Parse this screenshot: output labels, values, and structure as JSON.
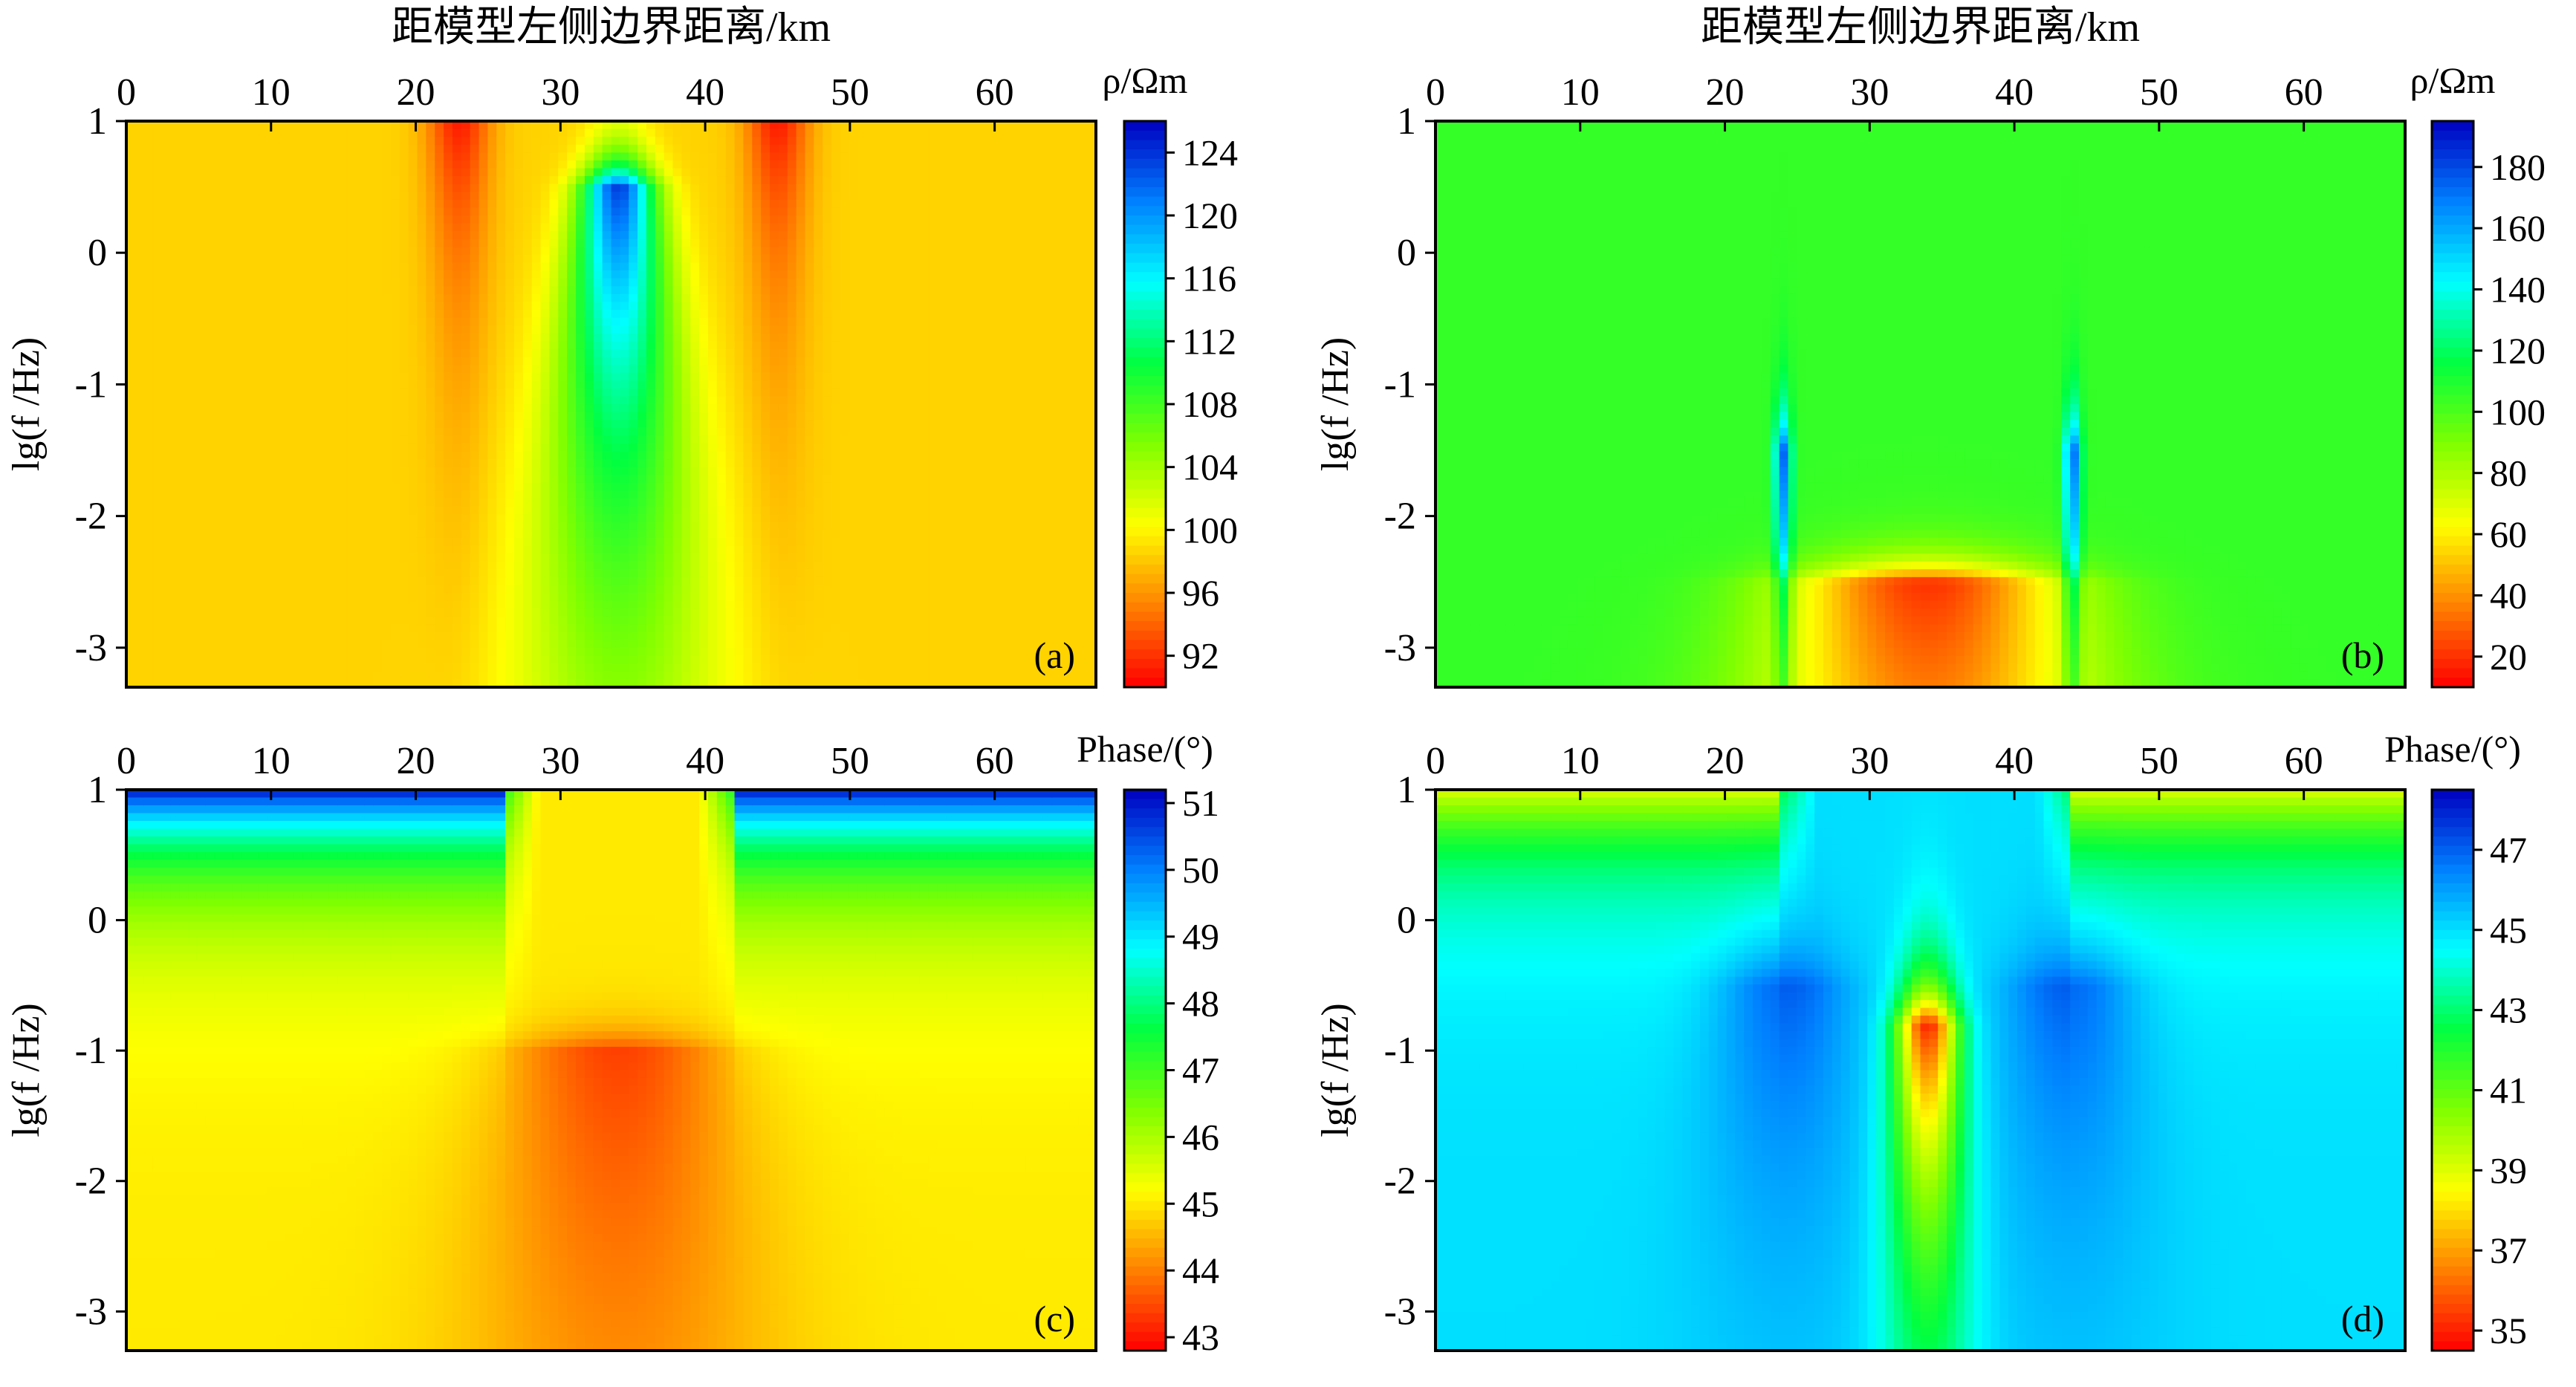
{
  "figure": {
    "panels": [
      {
        "id": "a",
        "label": "(a)",
        "top_title": "距模型左侧边界距离/km",
        "ylabel": "lg(f /Hz)",
        "colorbar_label": "ρ/Ωm",
        "colorbar_ticks": [
          "124",
          "120",
          "116",
          "112",
          "108",
          "104",
          "100",
          "96",
          "92"
        ],
        "colorbar_range": [
          90,
          126
        ],
        "field": {
          "background": 98.5,
          "anomalies": [
            {
              "x": 23,
              "width": 2.2,
              "amp": -7.5,
              "lgf_top": 1,
              "decay": 0.7,
              "spread": 0.0
            },
            {
              "x": 45,
              "width": 2.2,
              "amp": -7.5,
              "lgf_top": 1,
              "decay": 0.7,
              "spread": 0.0
            },
            {
              "x": 34,
              "width": 2.0,
              "amp": 25,
              "lgf_top": 0.5,
              "decay": 0.35,
              "spread": 1.2
            }
          ]
        }
      },
      {
        "id": "b",
        "label": "(b)",
        "top_title": "距模型左侧边界距离/km",
        "ylabel": "lg(f /Hz)",
        "colorbar_label": "ρ/Ωm",
        "colorbar_ticks": [
          "180",
          "160",
          "140",
          "120",
          "100",
          "80",
          "60",
          "40",
          "20"
        ],
        "colorbar_range": [
          10,
          195
        ],
        "field": {
          "background": 105,
          "anomalies": [
            {
              "x": 24,
              "width": 0.6,
              "amp": 70,
              "lgf_top": -1.5,
              "decay": 0.5,
              "spread": 0.0
            },
            {
              "x": 44,
              "width": 0.6,
              "amp": 70,
              "lgf_top": -1.5,
              "decay": 0.5,
              "spread": 0.0
            },
            {
              "x": 34,
              "width": 1.8,
              "amp": -85,
              "lgf_top": -2.5,
              "decay": 0.25,
              "spread": 2.2
            }
          ]
        }
      },
      {
        "id": "c",
        "label": "(c)",
        "top_title": "",
        "ylabel": "lg(f /Hz)",
        "colorbar_label": "Phase/(°)",
        "colorbar_ticks": [
          "51",
          "50",
          "49",
          "48",
          "47",
          "46",
          "45",
          "44",
          "43"
        ],
        "colorbar_range": [
          42.8,
          51.2
        ],
        "field": {
          "background": 45.0,
          "surface": {
            "amp": 6.0,
            "depth": 0.6,
            "gap": [
              26,
              42
            ]
          },
          "anomalies": [
            {
              "x": 34,
              "width": 4.5,
              "amp": -1.6,
              "lgf_top": -1.0,
              "decay": 0.25,
              "spread": 1.5
            }
          ]
        }
      },
      {
        "id": "d",
        "label": "(d)",
        "top_title": "",
        "ylabel": "lg(f /Hz)",
        "colorbar_label": "Phase/(°)",
        "colorbar_ticks": [
          "47",
          "45",
          "43",
          "41",
          "39",
          "37",
          "35"
        ],
        "colorbar_range": [
          34.5,
          48.5
        ],
        "field": {
          "background": 45.0,
          "surface": {
            "amp": -6.0,
            "depth": 0.55,
            "gap": [
              24,
              44
            ]
          },
          "anomalies": [
            {
              "x": 24,
              "width": 3.0,
              "amp": 2.2,
              "lgf_top": -0.5,
              "decay": 0.55,
              "spread": 1.0
            },
            {
              "x": 44,
              "width": 3.0,
              "amp": 2.2,
              "lgf_top": -0.5,
              "decay": 0.55,
              "spread": 1.0
            },
            {
              "x": 34,
              "width": 1.5,
              "amp": -10,
              "lgf_top": -0.8,
              "decay": 0.55,
              "spread": 0.4
            }
          ]
        }
      }
    ]
  },
  "chart_data": {
    "type": "heatmap",
    "xlabel": "距模型左侧边界距离/km",
    "ylabel": "lg(f /Hz)",
    "xlim": [
      0,
      67
    ],
    "ylim": [
      -3.3,
      1
    ],
    "x_ticks": [
      "0",
      "10",
      "20",
      "30",
      "40",
      "50",
      "60"
    ],
    "y_ticks": [
      "1",
      "0",
      "-1",
      "-2",
      "-3"
    ],
    "grid": false,
    "colormap": "jet_reversed",
    "colormap_stops": [
      "#ff0000",
      "#ff8000",
      "#ffff00",
      "#80ff00",
      "#00ff40",
      "#00ffff",
      "#0080ff",
      "#0000c0"
    ],
    "panels": [
      "(a)",
      "(b)",
      "(c)",
      "(d)"
    ]
  }
}
